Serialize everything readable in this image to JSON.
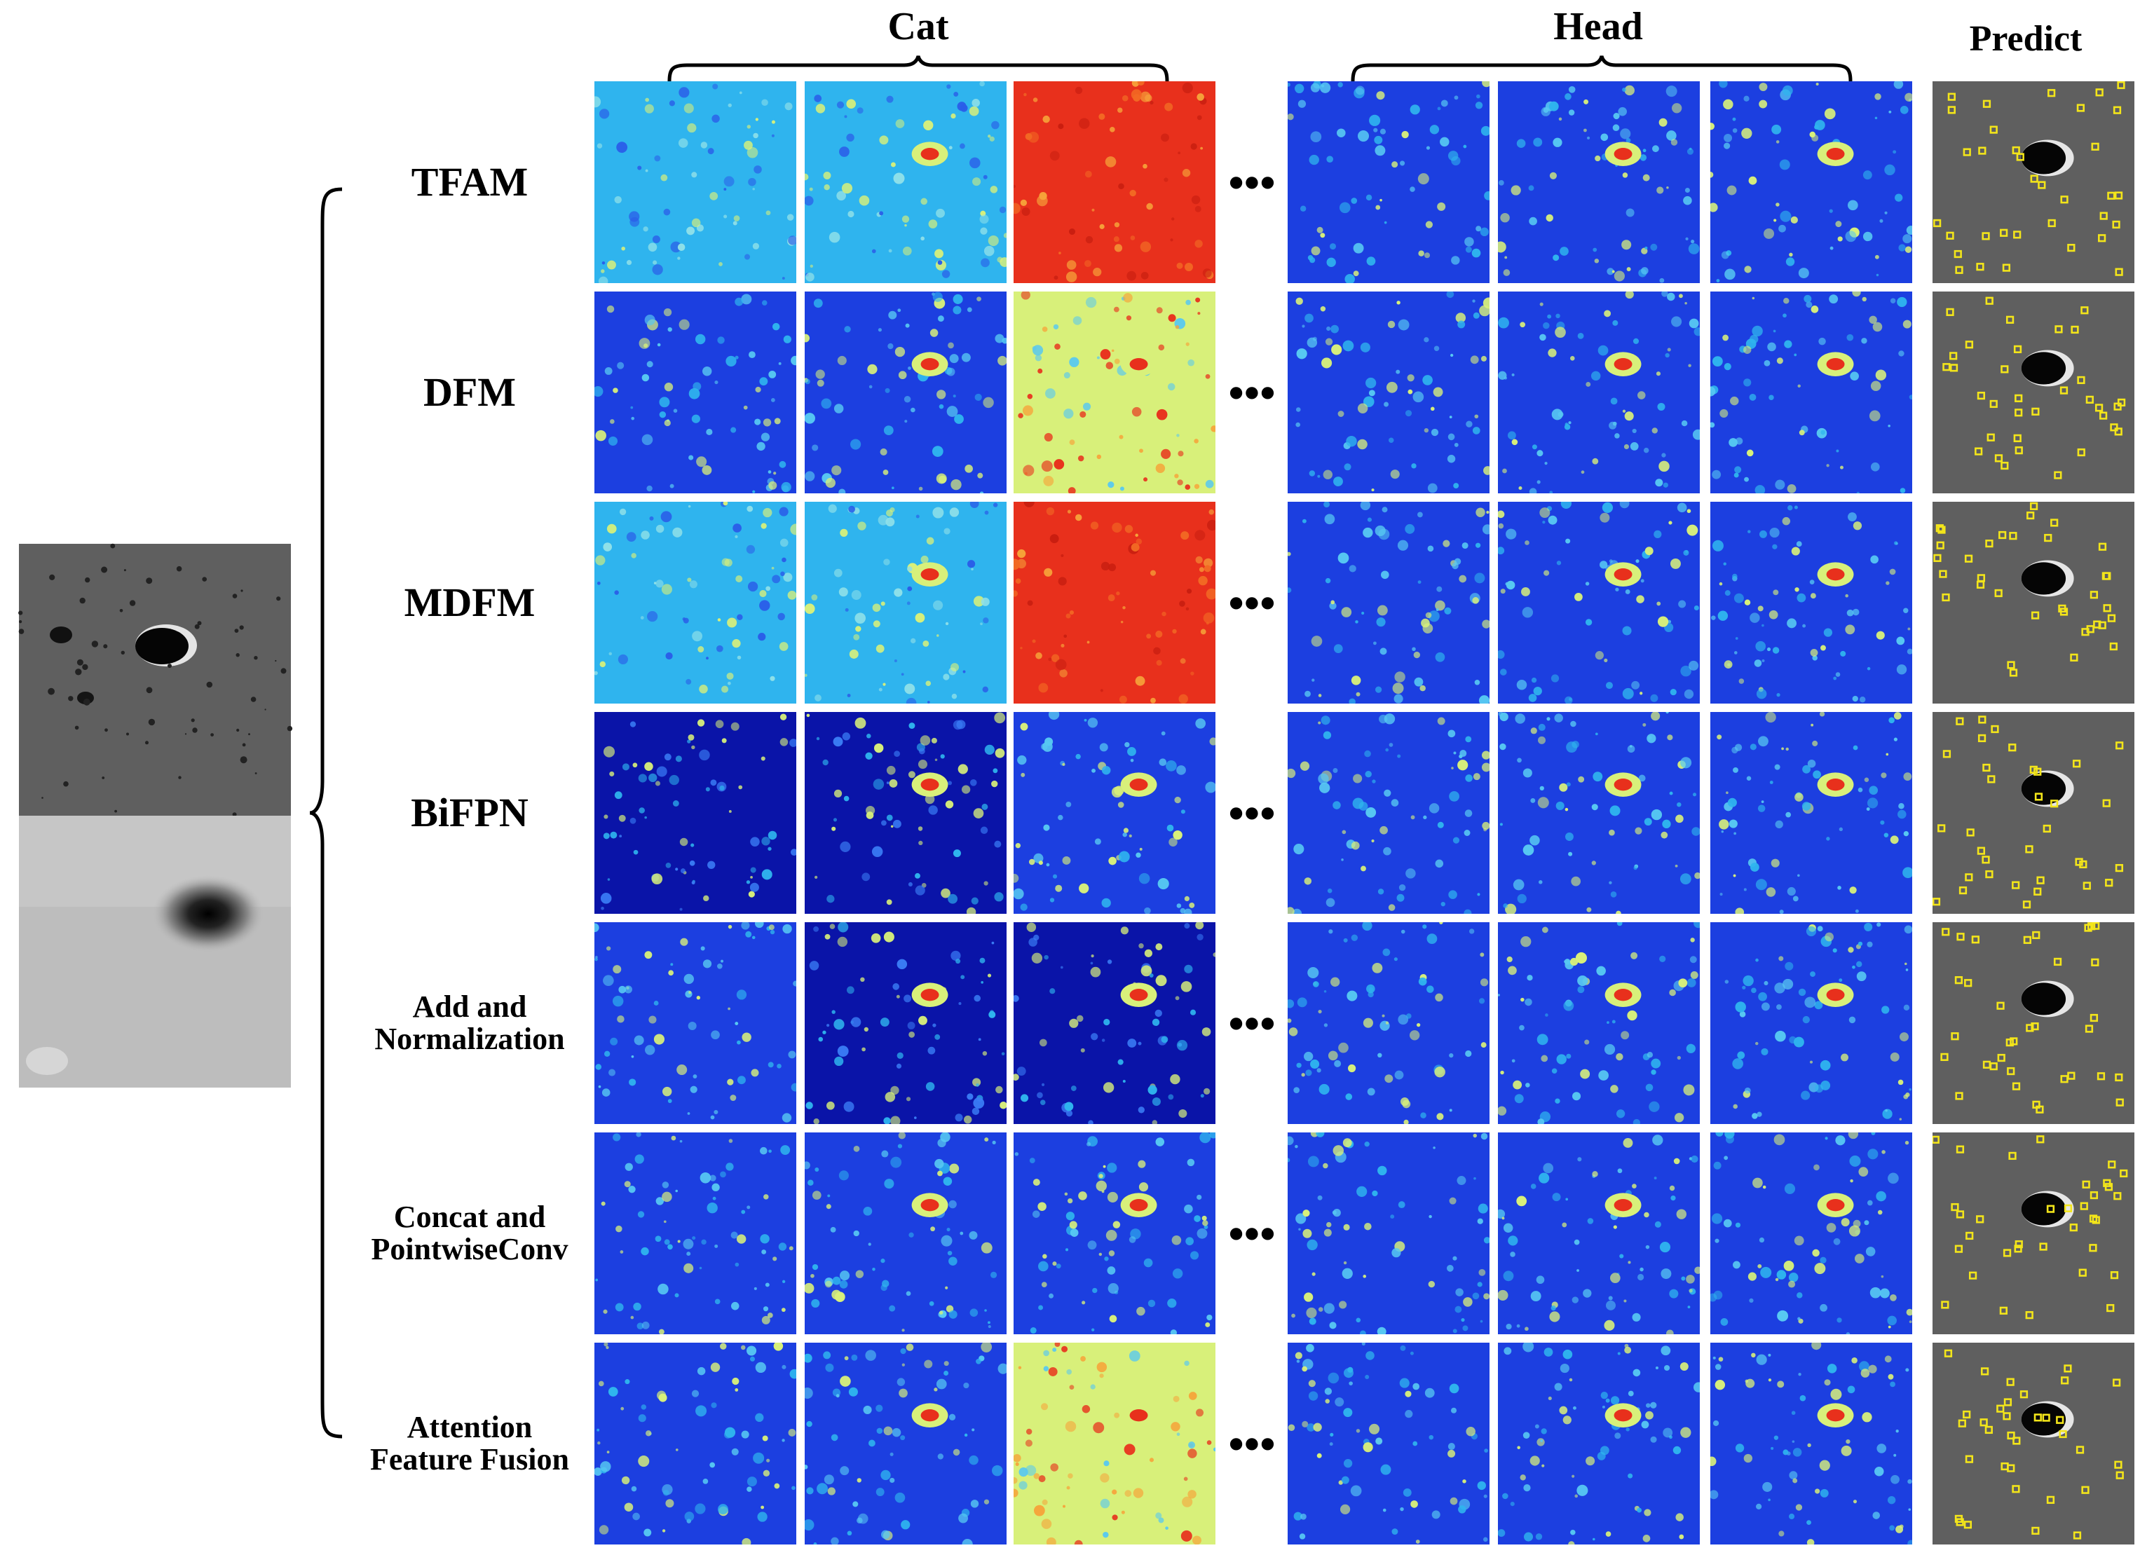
{
  "figure": {
    "group_labels": {
      "cat": "Cat",
      "head": "Head",
      "predict": "Predict"
    },
    "ellipsis": "•••",
    "rows": [
      {
        "label": [
          "TFAM"
        ],
        "style": "big",
        "cat": [
          "cyan",
          "cyan",
          "red"
        ],
        "head": [
          "blue",
          "blue",
          "blue"
        ]
      },
      {
        "label": [
          "DFM"
        ],
        "style": "big",
        "cat": [
          "blue",
          "blue",
          "yellow"
        ],
        "head": [
          "blue",
          "blue",
          "blue"
        ]
      },
      {
        "label": [
          "MDFM"
        ],
        "style": "big",
        "cat": [
          "cyan",
          "cyan",
          "red"
        ],
        "head": [
          "blue",
          "blue",
          "blue"
        ]
      },
      {
        "label": [
          "BiFPN"
        ],
        "style": "big",
        "cat": [
          "darkblue",
          "darkblue",
          "blue"
        ],
        "head": [
          "blue",
          "blue",
          "blue"
        ]
      },
      {
        "label": [
          "Add and",
          "Normalization"
        ],
        "style": "small",
        "cat": [
          "blue",
          "darkblue",
          "darkblue"
        ],
        "head": [
          "blue",
          "blue",
          "blue"
        ]
      },
      {
        "label": [
          "Concat  and",
          "PointwiseConv"
        ],
        "style": "small",
        "cat": [
          "blue",
          "blue",
          "blue"
        ],
        "head": [
          "blue",
          "blue",
          "blue"
        ]
      },
      {
        "label": [
          "Attention",
          "Feature Fusion"
        ],
        "style": "small",
        "cat": [
          "blue",
          "blue",
          "yellow"
        ],
        "head": [
          "blue",
          "blue",
          "blue"
        ]
      }
    ],
    "colors": {
      "darkblue": "#0a14a8",
      "blue": "#1c3fe0",
      "cyan": "#2fb4ee",
      "yellow": "#d8f07a",
      "red": "#e8301c",
      "moon": "#5f5f5f",
      "dem": "#b9b9b9",
      "box": "#f3e51a"
    }
  }
}
